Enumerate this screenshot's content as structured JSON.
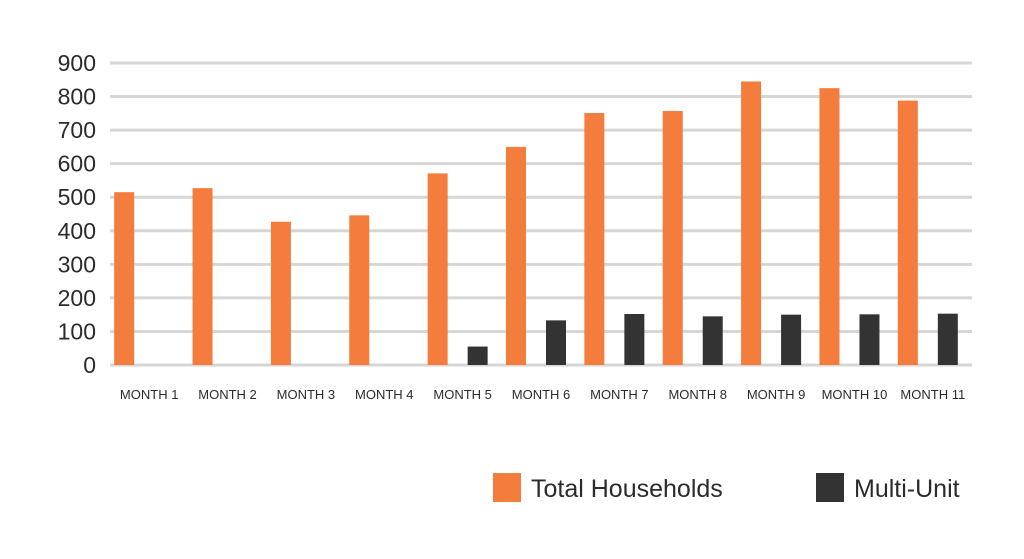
{
  "chart_data": {
    "type": "bar",
    "title": "",
    "xlabel": "",
    "ylabel": "",
    "categories": [
      "MONTH 1",
      "MONTH 2",
      "MONTH 3",
      "MONTH 4",
      "MONTH 5",
      "MONTH 6",
      "MONTH 7",
      "MONTH 8",
      "MONTH 9",
      "MONTH 10",
      "MONTH 11"
    ],
    "series": [
      {
        "name": "Total Households",
        "color": "#f47c3c",
        "values": [
          515,
          527,
          427,
          446,
          571,
          650,
          751,
          757,
          845,
          825,
          788
        ]
      },
      {
        "name": "Multi-Unit",
        "color": "#333333",
        "values": [
          null,
          null,
          null,
          null,
          55,
          133,
          152,
          145,
          150,
          151,
          153
        ]
      }
    ],
    "ylim": [
      0,
      900
    ],
    "yticks": [
      0,
      100,
      200,
      300,
      400,
      500,
      600,
      700,
      800,
      900
    ],
    "grid": true,
    "legend_position": "bottom-right"
  }
}
